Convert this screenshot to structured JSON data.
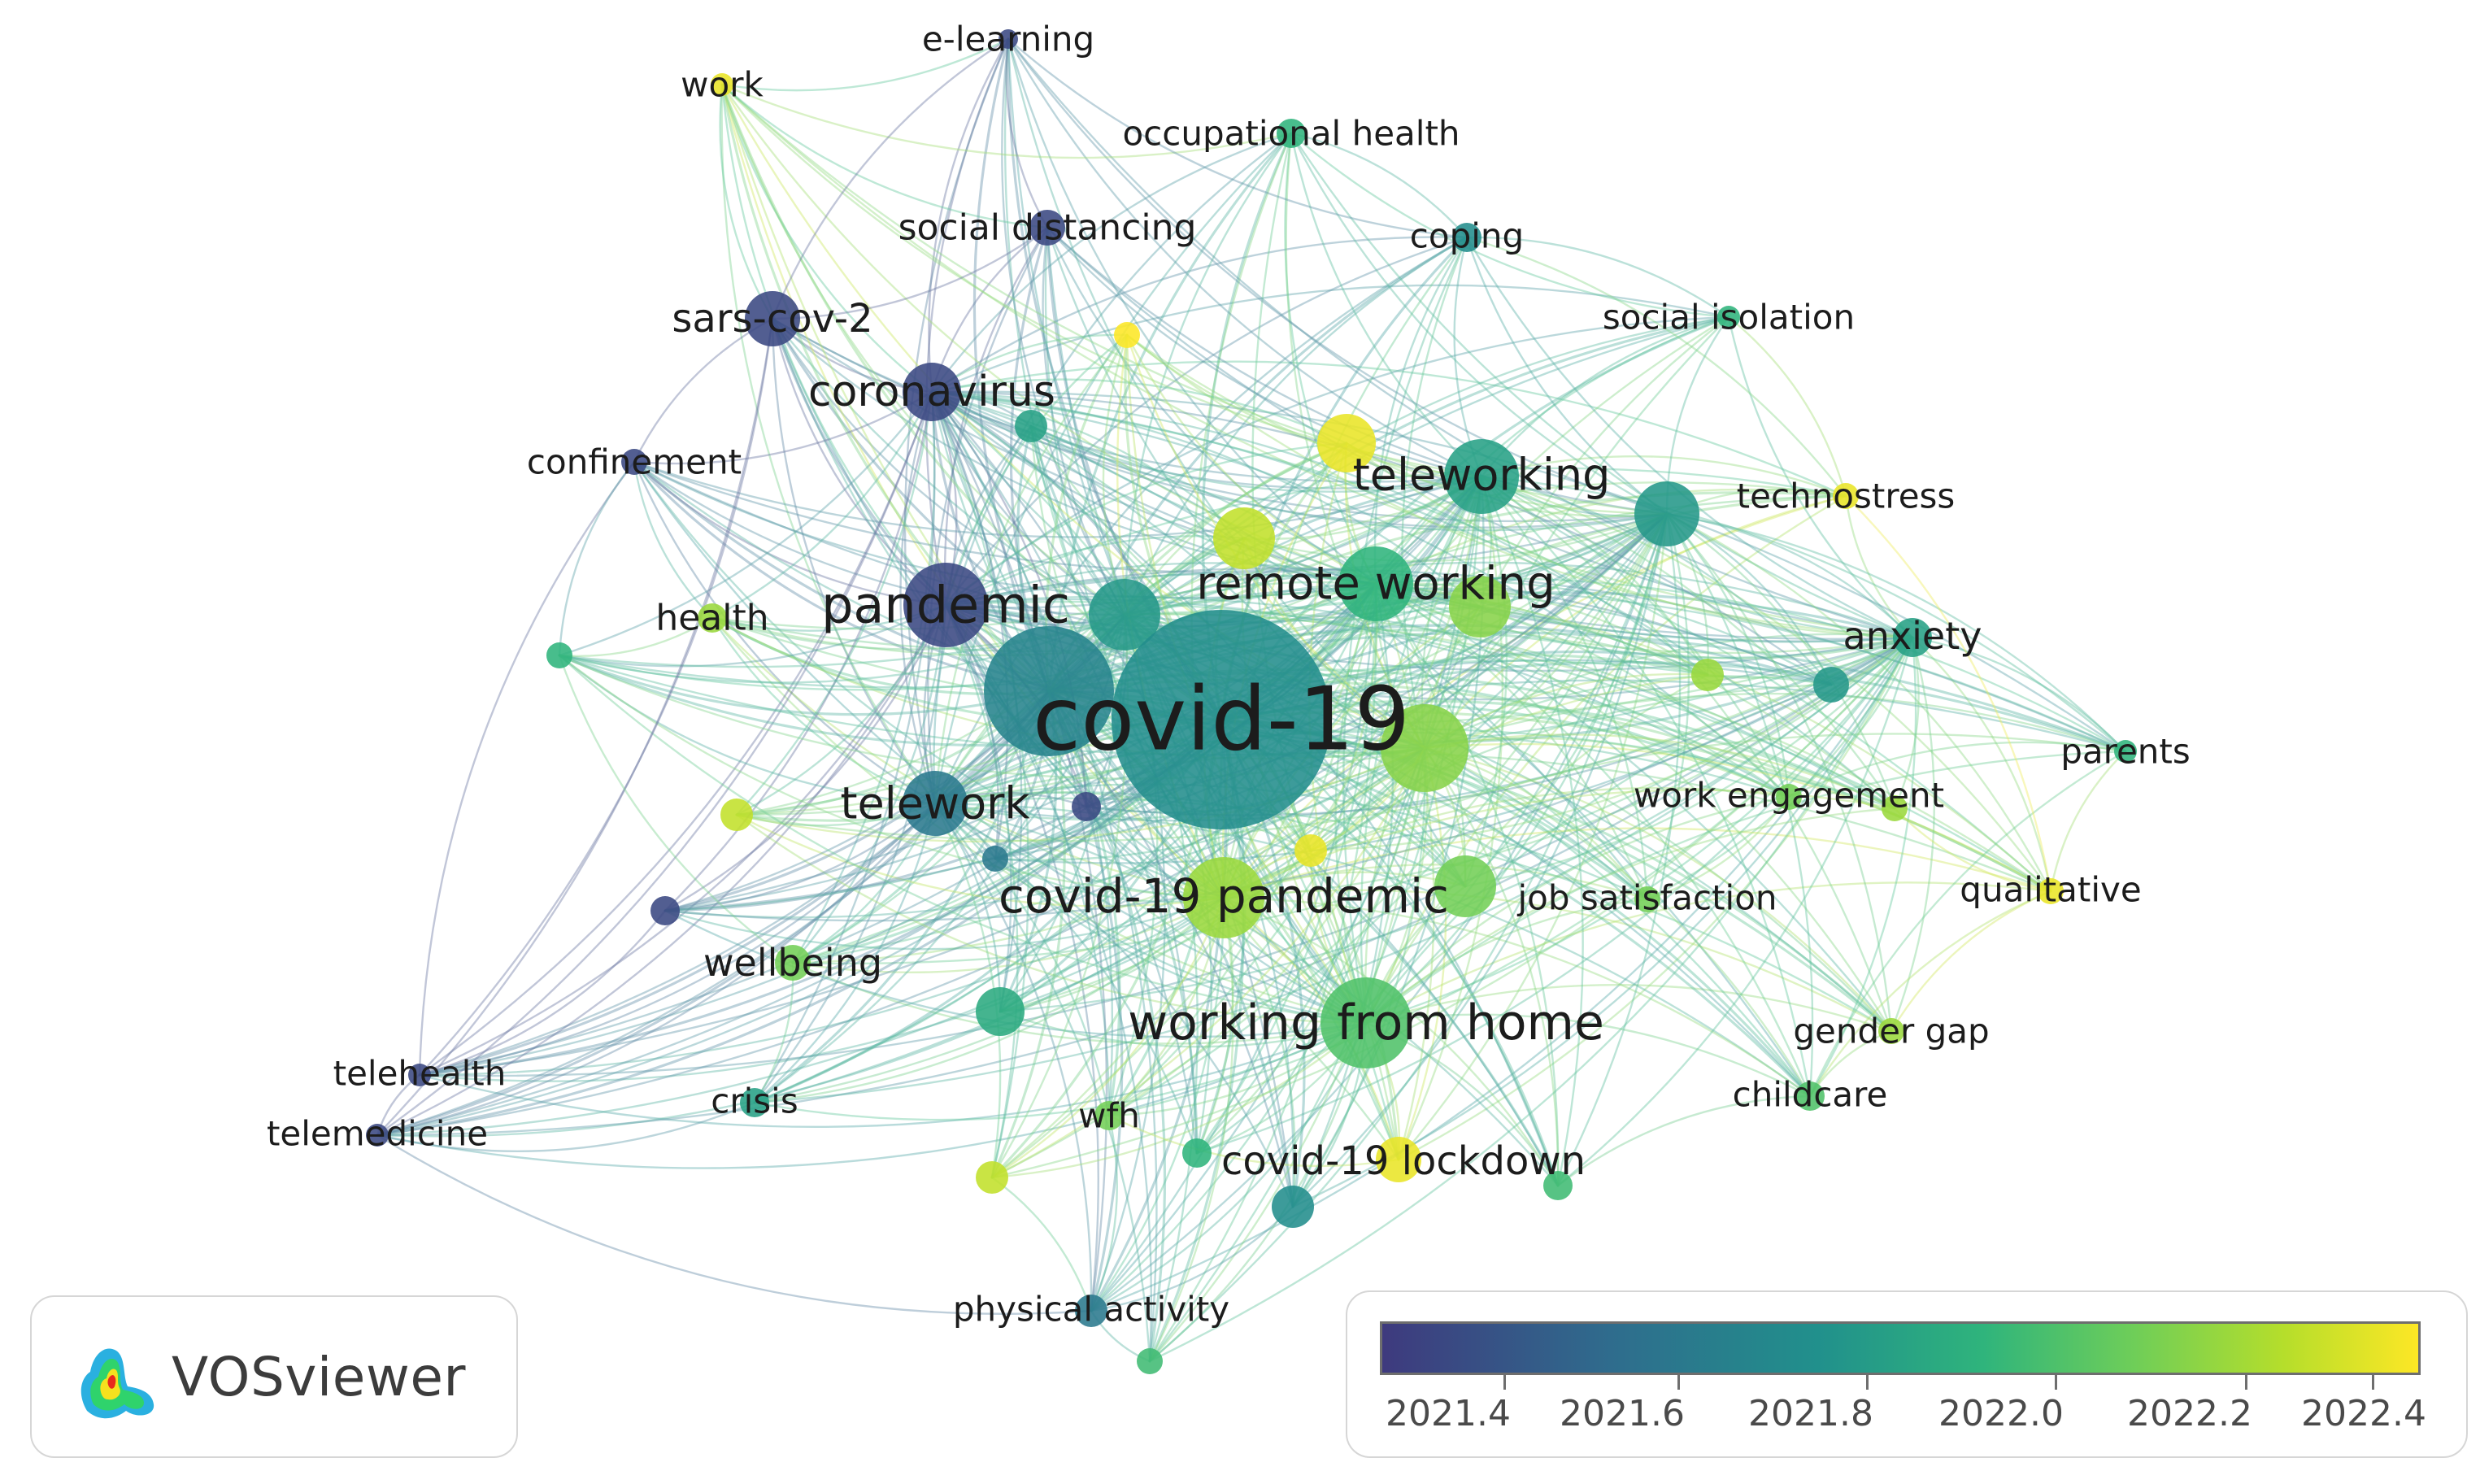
{
  "logo": {
    "text": "VOSviewer"
  },
  "legend": {
    "ticks": [
      "2021.4",
      "2021.6",
      "2021.8",
      "2022.0",
      "2022.2",
      "2022.4"
    ],
    "gradient_colors": [
      "#3e3a7e",
      "#2f6c8d",
      "#21908c",
      "#2fb47c",
      "#6ccd5a",
      "#b5de2b",
      "#fde725"
    ]
  },
  "nodes": [
    {
      "id": "covid19",
      "label": "covid-19",
      "year": 2021.7
    },
    {
      "id": "pandemic",
      "label": "pandemic",
      "year": 2021.4
    },
    {
      "id": "coronavirus",
      "label": "coronavirus",
      "year": 2021.4
    },
    {
      "id": "sarscov2",
      "label": "sars-cov-2",
      "year": 2021.4
    },
    {
      "id": "teleworking",
      "label": "teleworking",
      "year": 2021.8
    },
    {
      "id": "remoteworking",
      "label": "remote working",
      "year": 2021.9
    },
    {
      "id": "telework",
      "label": "telework",
      "year": 2021.6
    },
    {
      "id": "covid19pandemic",
      "label": "covid-19 pandemic",
      "year": 2022.2
    },
    {
      "id": "workingfromhome",
      "label": "working from home",
      "year": 2022.0
    },
    {
      "id": "anxiety",
      "label": "anxiety",
      "year": 2021.8
    },
    {
      "id": "technostress",
      "label": "technostress",
      "year": 2022.4
    },
    {
      "id": "socialisolation",
      "label": "social isolation",
      "year": 2021.9
    },
    {
      "id": "coping",
      "label": "coping",
      "year": 2021.7
    },
    {
      "id": "occupationalhealth",
      "label": "occupational health",
      "year": 2021.9
    },
    {
      "id": "socialdistancing",
      "label": "social distancing",
      "year": 2021.4
    },
    {
      "id": "elearning",
      "label": "e-learning",
      "year": 2021.4
    },
    {
      "id": "work",
      "label": "work",
      "year": 2022.4
    },
    {
      "id": "confinement",
      "label": "confinement",
      "year": 2021.4
    },
    {
      "id": "health",
      "label": "health",
      "year": 2022.2
    },
    {
      "id": "wellbeing",
      "label": "wellbeing",
      "year": 2022.1
    },
    {
      "id": "telehealth",
      "label": "telehealth",
      "year": 2021.4
    },
    {
      "id": "telemedicine",
      "label": "telemedicine",
      "year": 2021.4
    },
    {
      "id": "crisis",
      "label": "crisis",
      "year": 2021.8
    },
    {
      "id": "wfh",
      "label": "wfh",
      "year": 2022.1
    },
    {
      "id": "covid19lockdown",
      "label": "covid-19 lockdown",
      "year": 2022.4
    },
    {
      "id": "physicalactivity",
      "label": "physical activity",
      "year": 2021.6
    },
    {
      "id": "jobsatisfaction",
      "label": "job satisfaction",
      "year": 2022.1
    },
    {
      "id": "workengagement",
      "label": "work engagement",
      "year": 2022.1
    },
    {
      "id": "qualitative",
      "label": "qualitative",
      "year": 2022.4
    },
    {
      "id": "parents",
      "label": "parents",
      "year": 2021.9
    },
    {
      "id": "gendergap",
      "label": "gender gap",
      "year": 2022.2
    },
    {
      "id": "childcare",
      "label": "childcare",
      "year": 2022.0
    }
  ]
}
